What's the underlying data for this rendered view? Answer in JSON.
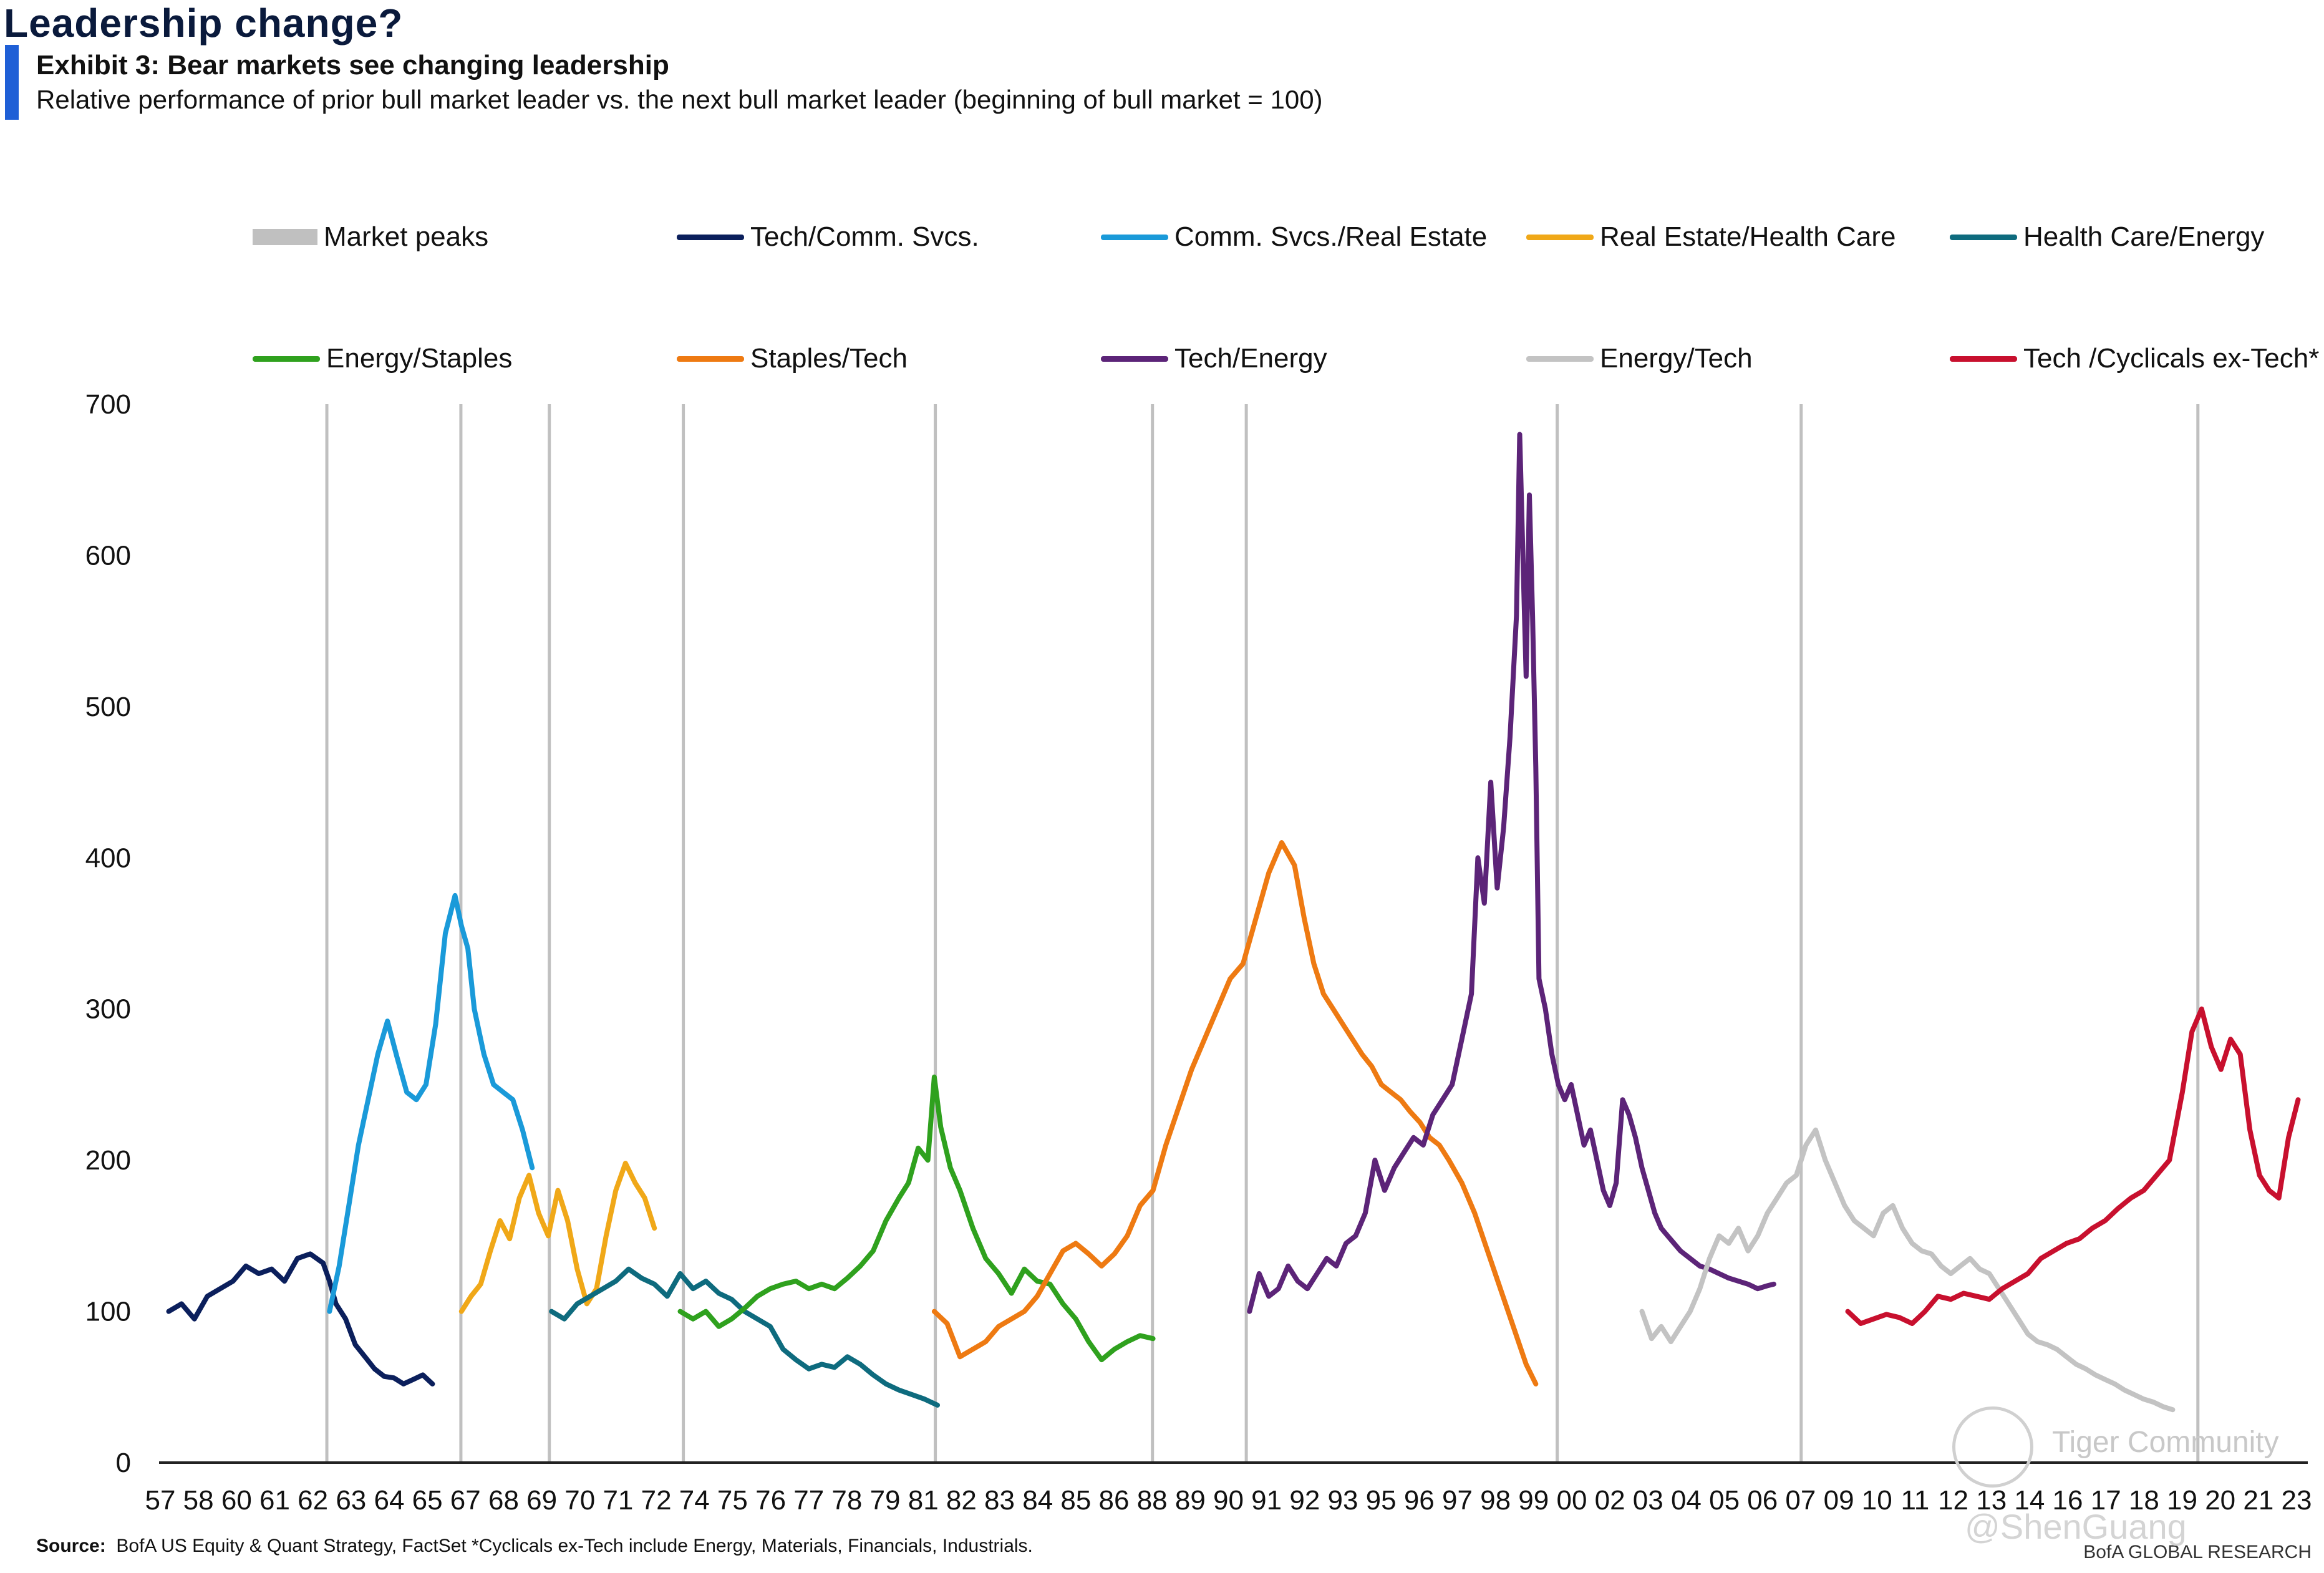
{
  "header": {
    "headline": "Leadership  change?",
    "exhibit_title": "Exhibit 3: Bear markets see changing leadership",
    "subtitle": "Relative performance of prior bull market leader vs. the next bull market leader (beginning of bull market = 100)"
  },
  "legend": [
    {
      "label": "Market peaks",
      "color": "#c0c0c0",
      "kind": "box"
    },
    {
      "label": "Tech/Comm. Svcs.",
      "color": "#0b1f5c",
      "kind": "line"
    },
    {
      "label": "Comm. Svcs./Real Estate",
      "color": "#1a9ad9",
      "kind": "line"
    },
    {
      "label": "Real Estate/Health Care",
      "color": "#f0a818",
      "kind": "line"
    },
    {
      "label": "Health Care/Energy",
      "color": "#0e6b7e",
      "kind": "line"
    },
    {
      "label": "Energy/Staples",
      "color": "#2fa11e",
      "kind": "line"
    },
    {
      "label": "Staples/Tech",
      "color": "#ee7a12",
      "kind": "line"
    },
    {
      "label": "Tech/Energy",
      "color": "#5c2478",
      "kind": "line"
    },
    {
      "label": "Energy/Tech",
      "color": "#c3c3c3",
      "kind": "line"
    },
    {
      "label": "Tech /Cyclicals ex-Tech*",
      "color": "#c8102e",
      "kind": "line"
    }
  ],
  "chart_data": {
    "type": "line",
    "title": "Exhibit 3: Bear markets see changing leadership",
    "xlabel": "",
    "ylabel": "",
    "ylim": [
      0,
      700
    ],
    "y_ticks": [
      "0",
      "100",
      "200",
      "300",
      "400",
      "500",
      "600",
      "700"
    ],
    "x_ticks": [
      "57",
      "58",
      "60",
      "61",
      "62",
      "63",
      "64",
      "65",
      "67",
      "68",
      "69",
      "70",
      "71",
      "72",
      "74",
      "75",
      "76",
      "77",
      "78",
      "79",
      "81",
      "82",
      "83",
      "84",
      "85",
      "86",
      "88",
      "89",
      "90",
      "91",
      "92",
      "93",
      "95",
      "96",
      "97",
      "98",
      "99",
      "00",
      "02",
      "03",
      "04",
      "05",
      "06",
      "07",
      "09",
      "10",
      "11",
      "12",
      "13",
      "14",
      "16",
      "17",
      "18",
      "19",
      "20",
      "21",
      "23"
    ],
    "market_peaks": [
      "Dec-1961",
      "Feb-1966",
      "Nov-1968",
      "Jan-1973",
      "Nov-1980",
      "Aug-1987",
      "Jul-1990",
      "Mar-2000",
      "Oct-2007",
      "Feb-2020"
    ],
    "series": [
      {
        "name": "Tech/Comm. Svcs.",
        "color": "#0b1f5c",
        "x": [
          1957.0,
          1957.4,
          1957.8,
          1958.2,
          1958.6,
          1959.0,
          1959.4,
          1959.8,
          1960.2,
          1960.6,
          1961.0,
          1961.4,
          1961.8,
          1962.0,
          1962.2,
          1962.5,
          1962.8,
          1963.1,
          1963.4,
          1963.7,
          1964.0,
          1964.3,
          1964.6,
          1964.9,
          1965.2
        ],
        "values": [
          100,
          105,
          95,
          110,
          115,
          120,
          130,
          125,
          128,
          120,
          135,
          138,
          132,
          120,
          105,
          95,
          78,
          70,
          62,
          57,
          56,
          52,
          55,
          58,
          52
        ]
      },
      {
        "name": "Comm. Svcs./Real Estate",
        "color": "#1a9ad9",
        "x": [
          1962.0,
          1962.3,
          1962.6,
          1962.9,
          1963.2,
          1963.5,
          1963.8,
          1964.1,
          1964.4,
          1964.7,
          1965.0,
          1965.3,
          1965.6,
          1965.9,
          1966.1,
          1966.3,
          1966.5,
          1966.8,
          1967.1,
          1967.4,
          1967.7,
          1968.0,
          1968.3
        ],
        "values": [
          100,
          130,
          170,
          210,
          240,
          270,
          292,
          268,
          245,
          240,
          250,
          290,
          350,
          375,
          355,
          340,
          300,
          270,
          250,
          245,
          240,
          220,
          195
        ]
      },
      {
        "name": "Real Estate/Health Care",
        "color": "#f0a818",
        "x": [
          1966.1,
          1966.4,
          1966.7,
          1967.0,
          1967.3,
          1967.6,
          1967.9,
          1968.2,
          1968.5,
          1968.8,
          1969.1,
          1969.4,
          1969.7,
          1970.0,
          1970.3,
          1970.6,
          1970.9,
          1971.2,
          1971.5,
          1971.8,
          1972.1
        ],
        "values": [
          100,
          110,
          118,
          140,
          160,
          148,
          175,
          190,
          165,
          150,
          180,
          160,
          128,
          105,
          115,
          150,
          180,
          198,
          185,
          175,
          155
        ]
      },
      {
        "name": "Health Care/Energy",
        "color": "#0e6b7e",
        "x": [
          1968.9,
          1969.3,
          1969.7,
          1970.1,
          1970.5,
          1970.9,
          1971.3,
          1971.7,
          1972.1,
          1972.5,
          1972.9,
          1973.3,
          1973.7,
          1974.1,
          1974.5,
          1974.9,
          1975.3,
          1975.7,
          1976.1,
          1976.5,
          1976.9,
          1977.3,
          1977.7,
          1978.1,
          1978.5,
          1978.9,
          1979.3,
          1979.7,
          1980.1,
          1980.5,
          1980.9
        ],
        "values": [
          100,
          95,
          105,
          110,
          115,
          120,
          128,
          122,
          118,
          110,
          125,
          115,
          120,
          112,
          108,
          100,
          95,
          90,
          75,
          68,
          62,
          65,
          63,
          70,
          65,
          58,
          52,
          48,
          45,
          42,
          38
        ]
      },
      {
        "name": "Energy/Staples",
        "color": "#2fa11e",
        "x": [
          1972.9,
          1973.3,
          1973.7,
          1974.1,
          1974.5,
          1974.9,
          1975.3,
          1975.7,
          1976.1,
          1976.5,
          1976.9,
          1977.3,
          1977.7,
          1978.1,
          1978.5,
          1978.9,
          1979.3,
          1979.7,
          1980.0,
          1980.3,
          1980.6,
          1980.8,
          1981.0,
          1981.3,
          1981.6,
          1982.0,
          1982.4,
          1982.8,
          1983.2,
          1983.6,
          1984.0,
          1984.4,
          1984.8,
          1985.2,
          1985.6,
          1986.0,
          1986.4,
          1986.8,
          1987.2,
          1987.6
        ],
        "values": [
          100,
          95,
          100,
          90,
          95,
          102,
          110,
          115,
          118,
          120,
          115,
          118,
          115,
          122,
          130,
          140,
          160,
          175,
          185,
          208,
          200,
          255,
          222,
          195,
          180,
          155,
          135,
          125,
          112,
          128,
          120,
          118,
          105,
          95,
          80,
          68,
          75,
          80,
          84,
          82
        ]
      },
      {
        "name": "Staples/Tech",
        "color": "#ee7a12",
        "x": [
          1980.8,
          1981.2,
          1981.6,
          1982.0,
          1982.4,
          1982.8,
          1983.2,
          1983.6,
          1984.0,
          1984.4,
          1984.8,
          1985.2,
          1985.6,
          1986.0,
          1986.4,
          1986.8,
          1987.2,
          1987.6,
          1988.0,
          1988.4,
          1988.8,
          1989.2,
          1989.6,
          1990.0,
          1990.4,
          1990.8,
          1991.2,
          1991.6,
          1992.0,
          1992.3,
          1992.6,
          1992.9,
          1993.2,
          1993.5,
          1993.8,
          1994.1,
          1994.4,
          1994.7,
          1995.0,
          1995.3,
          1995.6,
          1995.9,
          1996.2,
          1996.5,
          1996.8,
          1997.2,
          1997.6,
          1998.0,
          1998.4,
          1998.8,
          1999.2,
          1999.5
        ],
        "values": [
          100,
          92,
          70,
          75,
          80,
          90,
          95,
          100,
          110,
          125,
          140,
          145,
          138,
          130,
          138,
          150,
          170,
          180,
          210,
          235,
          260,
          280,
          300,
          320,
          330,
          360,
          390,
          410,
          395,
          360,
          330,
          310,
          300,
          290,
          280,
          270,
          262,
          250,
          245,
          240,
          232,
          225,
          215,
          210,
          200,
          185,
          165,
          140,
          115,
          90,
          65,
          52
        ]
      },
      {
        "name": "Tech/Energy",
        "color": "#5c2478",
        "x": [
          1990.6,
          1990.9,
          1991.2,
          1991.5,
          1991.8,
          1992.1,
          1992.4,
          1992.7,
          1993.0,
          1993.3,
          1993.6,
          1993.9,
          1994.2,
          1994.5,
          1994.8,
          1995.1,
          1995.4,
          1995.7,
          1996.0,
          1996.3,
          1996.6,
          1996.9,
          1997.2,
          1997.5,
          1997.7,
          1997.9,
          1998.1,
          1998.3,
          1998.5,
          1998.7,
          1998.9,
          1999.0,
          1999.1,
          1999.2,
          1999.3,
          1999.4,
          1999.5,
          1999.6,
          1999.8,
          2000.0,
          2000.2,
          2000.4,
          2000.6,
          2000.8,
          2001.0,
          2001.2,
          2001.4,
          2001.6,
          2001.8,
          2002.0,
          2002.2,
          2002.4,
          2002.6,
          2002.8,
          2003.0,
          2003.2,
          2003.4,
          2003.6,
          2003.8,
          2004.0,
          2004.3,
          2004.6,
          2004.9,
          2005.2,
          2005.5,
          2005.8,
          2006.1,
          2006.4,
          2006.7,
          2006.9
        ],
        "values": [
          100,
          125,
          110,
          115,
          130,
          120,
          115,
          125,
          135,
          130,
          145,
          150,
          165,
          200,
          180,
          195,
          205,
          215,
          210,
          230,
          240,
          250,
          280,
          310,
          400,
          370,
          450,
          380,
          420,
          480,
          560,
          680,
          600,
          520,
          640,
          560,
          460,
          320,
          300,
          270,
          250,
          240,
          250,
          230,
          210,
          220,
          200,
          180,
          170,
          185,
          240,
          230,
          215,
          195,
          180,
          165,
          155,
          150,
          145,
          140,
          135,
          130,
          128,
          125,
          122,
          120,
          118,
          115,
          117,
          118
        ]
      },
      {
        "name": "Energy/Tech",
        "color": "#c3c3c3",
        "x": [
          2002.8,
          2003.1,
          2003.4,
          2003.7,
          2004.0,
          2004.3,
          2004.6,
          2004.9,
          2005.2,
          2005.5,
          2005.8,
          2006.1,
          2006.4,
          2006.7,
          2007.0,
          2007.3,
          2007.6,
          2007.9,
          2008.2,
          2008.5,
          2008.8,
          2009.1,
          2009.4,
          2009.7,
          2010.0,
          2010.3,
          2010.6,
          2010.9,
          2011.2,
          2011.5,
          2011.8,
          2012.1,
          2012.4,
          2012.7,
          2013.0,
          2013.3,
          2013.6,
          2013.9,
          2014.2,
          2014.5,
          2014.8,
          2015.1,
          2015.4,
          2015.7,
          2016.0,
          2016.3,
          2016.6,
          2016.9,
          2017.2,
          2017.5,
          2017.8,
          2018.1,
          2018.4,
          2018.7,
          2019.0,
          2019.3
        ],
        "values": [
          100,
          82,
          90,
          80,
          90,
          100,
          115,
          135,
          150,
          145,
          155,
          140,
          150,
          165,
          175,
          185,
          190,
          210,
          220,
          200,
          185,
          170,
          160,
          155,
          150,
          165,
          170,
          155,
          145,
          140,
          138,
          130,
          125,
          130,
          135,
          128,
          125,
          115,
          105,
          95,
          85,
          80,
          78,
          75,
          70,
          65,
          62,
          58,
          55,
          52,
          48,
          45,
          42,
          40,
          37,
          35
        ]
      },
      {
        "name": "Tech /Cyclicals ex-Tech*",
        "color": "#c8102e",
        "x": [
          2009.2,
          2009.6,
          2010.0,
          2010.4,
          2010.8,
          2011.2,
          2011.6,
          2012.0,
          2012.4,
          2012.8,
          2013.2,
          2013.6,
          2014.0,
          2014.4,
          2014.8,
          2015.2,
          2015.6,
          2016.0,
          2016.4,
          2016.8,
          2017.2,
          2017.6,
          2018.0,
          2018.4,
          2018.8,
          2019.2,
          2019.6,
          2019.9,
          2020.2,
          2020.5,
          2020.8,
          2021.1,
          2021.4,
          2021.7,
          2022.0,
          2022.3,
          2022.6,
          2022.9,
          2023.2
        ],
        "values": [
          100,
          92,
          95,
          98,
          96,
          92,
          100,
          110,
          108,
          112,
          110,
          108,
          115,
          120,
          125,
          135,
          140,
          145,
          148,
          155,
          160,
          168,
          175,
          180,
          190,
          200,
          245,
          285,
          300,
          275,
          260,
          280,
          270,
          220,
          190,
          180,
          175,
          215,
          240
        ]
      }
    ]
  },
  "footer": {
    "source_label": "Source:",
    "source_text": "BofA US Equity  & Quant Strategy, FactSet *Cyclicals ex-Tech include  Energy, Materials, Financials, Industrials.",
    "brand": "BofA GLOBAL RESEARCH"
  },
  "watermark": {
    "line1": "Tiger Community",
    "line2": "@ShenGuang"
  }
}
